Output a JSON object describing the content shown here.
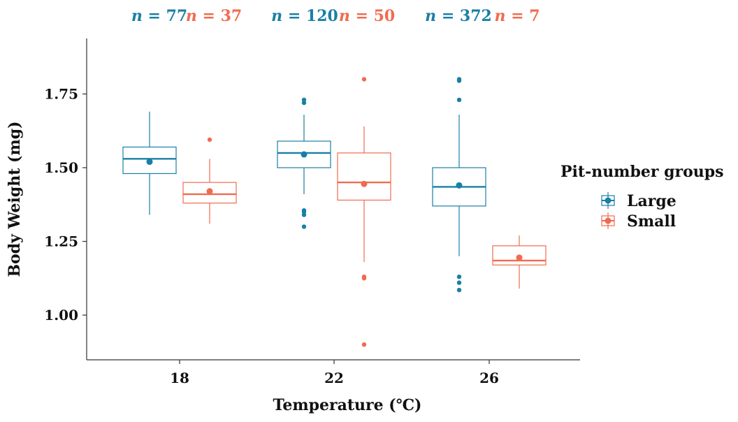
{
  "chart_data": {
    "type": "box",
    "title": "",
    "xlabel": "Temperature (℃)",
    "ylabel": "Body Weight (mg)",
    "categories": [
      "18",
      "22",
      "26"
    ],
    "yticks": [
      "1.00",
      "1.25",
      "1.50",
      "1.75"
    ],
    "ylim": [
      0.86,
      1.93
    ],
    "grid": false,
    "legend": {
      "title": "Pit-number groups",
      "position": "right"
    },
    "colors": {
      "Large": "#1a7fa6",
      "Small": "#f06b4f"
    },
    "series": [
      {
        "name": "Large",
        "color": "#1a7fa6",
        "n_labels": [
          "n = 77",
          "n = 120",
          "n = 372"
        ],
        "boxes": [
          {
            "category": "18",
            "whisker_low": 1.34,
            "q1": 1.48,
            "median": 1.53,
            "q3": 1.57,
            "whisker_high": 1.69,
            "mean": 1.52,
            "outliers": []
          },
          {
            "category": "22",
            "whisker_low": 1.41,
            "q1": 1.5,
            "median": 1.55,
            "q3": 1.59,
            "whisker_high": 1.68,
            "mean": 1.545,
            "outliers": [
              1.3,
              1.34,
              1.35,
              1.355,
              1.72,
              1.73
            ]
          },
          {
            "category": "26",
            "whisker_low": 1.2,
            "q1": 1.37,
            "median": 1.435,
            "q3": 1.5,
            "whisker_high": 1.68,
            "mean": 1.44,
            "outliers": [
              1.085,
              1.11,
              1.13,
              1.73,
              1.795,
              1.8
            ]
          }
        ]
      },
      {
        "name": "Small",
        "color": "#f06b4f",
        "n_labels": [
          "n = 37",
          "n = 50",
          "n = 7"
        ],
        "boxes": [
          {
            "category": "18",
            "whisker_low": 1.31,
            "q1": 1.38,
            "median": 1.41,
            "q3": 1.45,
            "whisker_high": 1.53,
            "mean": 1.42,
            "outliers": [
              1.595
            ]
          },
          {
            "category": "22",
            "whisker_low": 1.18,
            "q1": 1.39,
            "median": 1.45,
            "q3": 1.55,
            "whisker_high": 1.64,
            "mean": 1.445,
            "outliers": [
              0.9,
              1.125,
              1.13,
              1.8
            ]
          },
          {
            "category": "26",
            "whisker_low": 1.09,
            "q1": 1.17,
            "median": 1.185,
            "q3": 1.235,
            "whisker_high": 1.27,
            "mean": 1.195,
            "outliers": []
          }
        ]
      }
    ]
  }
}
